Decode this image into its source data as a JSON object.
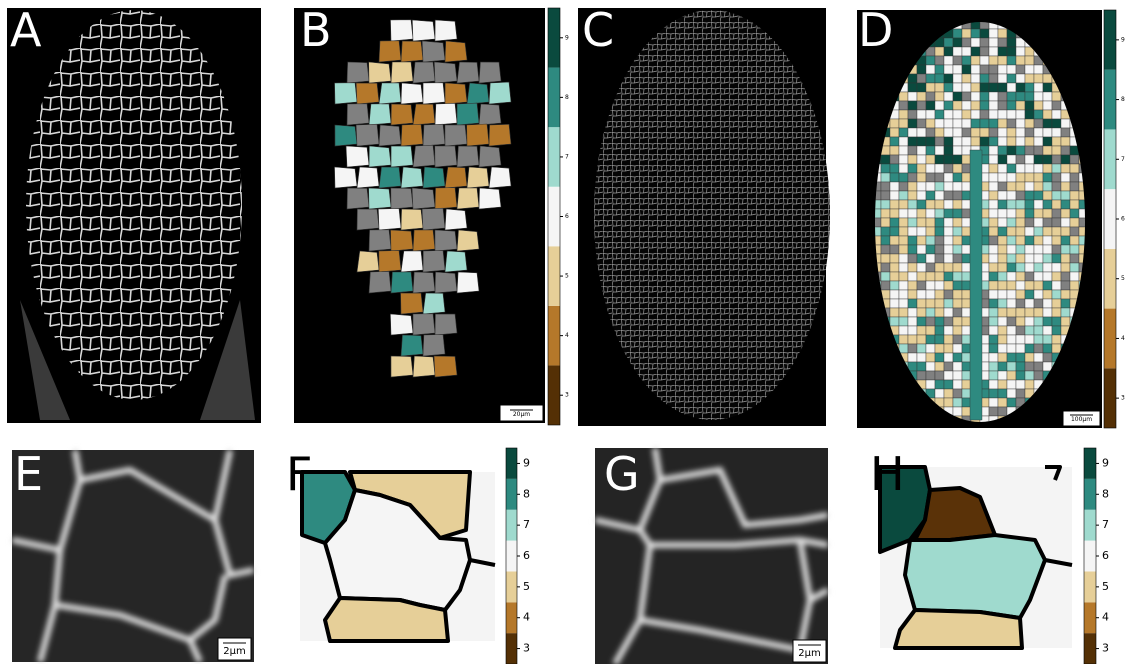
{
  "panels": [
    {
      "label": "A"
    },
    {
      "label": "B",
      "scale_bar": "20µm"
    },
    {
      "label": "C"
    },
    {
      "label": "D",
      "scale_bar": "100µm"
    },
    {
      "label": "E",
      "scale_bar": "2µm"
    },
    {
      "label": "F"
    },
    {
      "label": "G",
      "scale_bar": "2µm"
    },
    {
      "label": "H"
    }
  ],
  "colorbar": {
    "ticks": [
      3,
      4,
      5,
      6,
      7,
      8,
      9
    ],
    "colors": [
      "#543005",
      "#b5782a",
      "#e6cf98",
      "#f5f5f5",
      "#9fdace",
      "#2e8a80",
      "#0a4a3e"
    ]
  }
}
